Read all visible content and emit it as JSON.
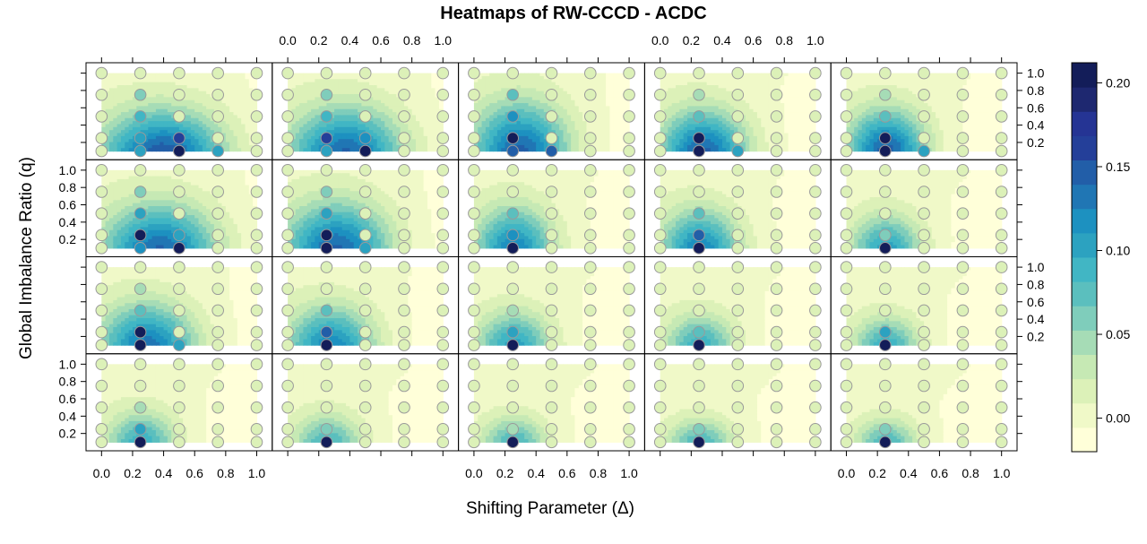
{
  "chart_data": {
    "type": "heatmap",
    "title": "Heatmaps of RW-CCCD - ACDC",
    "xlabel": "Shifting Parameter  (Δ)",
    "ylabel": "Global Imbalance Ratio (q)",
    "x_ticks": [
      "0.0",
      "0.2",
      "0.4",
      "0.6",
      "0.8",
      "1.0"
    ],
    "y_ticks": [
      "0.2",
      "0.4",
      "0.6",
      "0.8",
      "1.0"
    ],
    "x_points": [
      0.0,
      0.25,
      0.5,
      0.75,
      1.0
    ],
    "y_points": [
      0.1,
      0.25,
      0.5,
      0.75,
      1.0
    ],
    "xlim": [
      -0.1,
      1.1
    ],
    "ylim": [
      0.0,
      1.12
    ],
    "panel_rows": 4,
    "panel_cols": 5,
    "colorbar": {
      "ticks": [
        "0.00",
        "0.05",
        "0.10",
        "0.15",
        "0.20"
      ],
      "tick_values": [
        0.0,
        0.05,
        0.1,
        0.15,
        0.2
      ],
      "range": [
        -0.02,
        0.212
      ],
      "colors": [
        "#ffffd9",
        "#f0f9c8",
        "#dcf1b8",
        "#c6e9b4",
        "#a6dcb6",
        "#7fcdbb",
        "#5bbfbe",
        "#41b6c4",
        "#2ca2c0",
        "#1d91c0",
        "#2076b4",
        "#225ea8",
        "#243f99",
        "#253494",
        "#1e2870",
        "#131d59"
      ]
    },
    "panels": [
      {
        "row": 0,
        "col": 0,
        "hot": {
          "x": 0.4,
          "y": 0.02,
          "sx": 0.28,
          "sy": 0.38,
          "amp": 0.16
        },
        "points": [
          {
            "x": 0.25,
            "y": 0.1,
            "v": 0.1
          },
          {
            "x": 0.5,
            "y": 0.1,
            "v": 0.21
          },
          {
            "x": 0.75,
            "y": 0.1,
            "v": 0.1
          },
          {
            "x": 0.25,
            "y": 0.25,
            "v": 0.1
          },
          {
            "x": 0.5,
            "y": 0.25,
            "v": 0.16
          },
          {
            "x": 0.25,
            "y": 0.5,
            "v": 0.09
          },
          {
            "x": 0.25,
            "y": 0.75,
            "v": 0.06
          }
        ]
      },
      {
        "row": 0,
        "col": 1,
        "hot": {
          "x": 0.38,
          "y": 0.02,
          "sx": 0.26,
          "sy": 0.4,
          "amp": 0.15
        },
        "points": [
          {
            "x": 0.25,
            "y": 0.1,
            "v": 0.1
          },
          {
            "x": 0.5,
            "y": 0.1,
            "v": 0.21
          },
          {
            "x": 0.25,
            "y": 0.25,
            "v": 0.16
          },
          {
            "x": 0.5,
            "y": 0.25,
            "v": 0.12
          },
          {
            "x": 0.25,
            "y": 0.5,
            "v": 0.09
          },
          {
            "x": 0.25,
            "y": 0.75,
            "v": 0.06
          }
        ]
      },
      {
        "row": 0,
        "col": 2,
        "hot": {
          "x": 0.3,
          "y": 0.05,
          "sx": 0.22,
          "sy": 0.42,
          "amp": 0.15
        },
        "points": [
          {
            "x": 0.25,
            "y": 0.1,
            "v": 0.15
          },
          {
            "x": 0.5,
            "y": 0.1,
            "v": 0.14
          },
          {
            "x": 0.25,
            "y": 0.25,
            "v": 0.21
          },
          {
            "x": 0.25,
            "y": 0.5,
            "v": 0.12
          },
          {
            "x": 0.25,
            "y": 0.75,
            "v": 0.07
          }
        ]
      },
      {
        "row": 0,
        "col": 3,
        "hot": {
          "x": 0.28,
          "y": 0.05,
          "sx": 0.2,
          "sy": 0.36,
          "amp": 0.15
        },
        "points": [
          {
            "x": 0.25,
            "y": 0.1,
            "v": 0.21
          },
          {
            "x": 0.5,
            "y": 0.1,
            "v": 0.1
          },
          {
            "x": 0.25,
            "y": 0.25,
            "v": 0.21
          },
          {
            "x": 0.25,
            "y": 0.5,
            "v": 0.08
          },
          {
            "x": 0.25,
            "y": 0.75,
            "v": 0.05
          }
        ]
      },
      {
        "row": 0,
        "col": 4,
        "hot": {
          "x": 0.26,
          "y": 0.08,
          "sx": 0.18,
          "sy": 0.34,
          "amp": 0.15
        },
        "points": [
          {
            "x": 0.25,
            "y": 0.1,
            "v": 0.21
          },
          {
            "x": 0.5,
            "y": 0.1,
            "v": 0.1
          },
          {
            "x": 0.25,
            "y": 0.25,
            "v": 0.21
          },
          {
            "x": 0.25,
            "y": 0.5,
            "v": 0.08
          },
          {
            "x": 0.25,
            "y": 0.75,
            "v": 0.05
          }
        ]
      },
      {
        "row": 1,
        "col": 0,
        "hot": {
          "x": 0.38,
          "y": 0.02,
          "sx": 0.26,
          "sy": 0.4,
          "amp": 0.15
        },
        "points": [
          {
            "x": 0.25,
            "y": 0.1,
            "v": 0.12
          },
          {
            "x": 0.5,
            "y": 0.1,
            "v": 0.21
          },
          {
            "x": 0.25,
            "y": 0.25,
            "v": 0.21
          },
          {
            "x": 0.5,
            "y": 0.25,
            "v": 0.1
          },
          {
            "x": 0.25,
            "y": 0.5,
            "v": 0.1
          },
          {
            "x": 0.25,
            "y": 0.75,
            "v": 0.06
          }
        ]
      },
      {
        "row": 1,
        "col": 1,
        "hot": {
          "x": 0.32,
          "y": 0.04,
          "sx": 0.24,
          "sy": 0.4,
          "amp": 0.15
        },
        "points": [
          {
            "x": 0.25,
            "y": 0.1,
            "v": 0.21
          },
          {
            "x": 0.5,
            "y": 0.1,
            "v": 0.1
          },
          {
            "x": 0.25,
            "y": 0.25,
            "v": 0.21
          },
          {
            "x": 0.25,
            "y": 0.5,
            "v": 0.1
          },
          {
            "x": 0.25,
            "y": 0.75,
            "v": 0.06
          }
        ]
      },
      {
        "row": 1,
        "col": 2,
        "hot": {
          "x": 0.26,
          "y": 0.05,
          "sx": 0.18,
          "sy": 0.36,
          "amp": 0.13
        },
        "points": [
          {
            "x": 0.25,
            "y": 0.1,
            "v": 0.21
          },
          {
            "x": 0.25,
            "y": 0.25,
            "v": 0.12
          },
          {
            "x": 0.25,
            "y": 0.5,
            "v": 0.07
          }
        ]
      },
      {
        "row": 1,
        "col": 3,
        "hot": {
          "x": 0.26,
          "y": 0.05,
          "sx": 0.18,
          "sy": 0.34,
          "amp": 0.13
        },
        "points": [
          {
            "x": 0.25,
            "y": 0.1,
            "v": 0.21
          },
          {
            "x": 0.25,
            "y": 0.25,
            "v": 0.14
          },
          {
            "x": 0.25,
            "y": 0.5,
            "v": 0.07
          }
        ]
      },
      {
        "row": 1,
        "col": 4,
        "hot": {
          "x": 0.26,
          "y": 0.05,
          "sx": 0.16,
          "sy": 0.3,
          "amp": 0.11
        },
        "points": [
          {
            "x": 0.25,
            "y": 0.1,
            "v": 0.21
          },
          {
            "x": 0.25,
            "y": 0.25,
            "v": 0.06
          }
        ]
      },
      {
        "row": 2,
        "col": 0,
        "hot": {
          "x": 0.3,
          "y": 0.05,
          "sx": 0.22,
          "sy": 0.36,
          "amp": 0.14
        },
        "points": [
          {
            "x": 0.25,
            "y": 0.1,
            "v": 0.21
          },
          {
            "x": 0.5,
            "y": 0.1,
            "v": 0.1
          },
          {
            "x": 0.25,
            "y": 0.25,
            "v": 0.21
          },
          {
            "x": 0.25,
            "y": 0.5,
            "v": 0.08
          },
          {
            "x": 0.25,
            "y": 0.75,
            "v": 0.05
          }
        ]
      },
      {
        "row": 2,
        "col": 1,
        "hot": {
          "x": 0.28,
          "y": 0.05,
          "sx": 0.2,
          "sy": 0.34,
          "amp": 0.13
        },
        "points": [
          {
            "x": 0.25,
            "y": 0.1,
            "v": 0.21
          },
          {
            "x": 0.25,
            "y": 0.25,
            "v": 0.14
          },
          {
            "x": 0.25,
            "y": 0.5,
            "v": 0.07
          }
        ]
      },
      {
        "row": 2,
        "col": 2,
        "hot": {
          "x": 0.26,
          "y": 0.05,
          "sx": 0.17,
          "sy": 0.3,
          "amp": 0.11
        },
        "points": [
          {
            "x": 0.25,
            "y": 0.1,
            "v": 0.21
          },
          {
            "x": 0.25,
            "y": 0.25,
            "v": 0.1
          },
          {
            "x": 0.25,
            "y": 0.5,
            "v": 0.05
          }
        ]
      },
      {
        "row": 2,
        "col": 3,
        "hot": {
          "x": 0.26,
          "y": 0.05,
          "sx": 0.16,
          "sy": 0.28,
          "amp": 0.1
        },
        "points": [
          {
            "x": 0.25,
            "y": 0.1,
            "v": 0.21
          },
          {
            "x": 0.25,
            "y": 0.25,
            "v": 0.07
          }
        ]
      },
      {
        "row": 2,
        "col": 4,
        "hot": {
          "x": 0.26,
          "y": 0.05,
          "sx": 0.15,
          "sy": 0.26,
          "amp": 0.1
        },
        "points": [
          {
            "x": 0.25,
            "y": 0.1,
            "v": 0.21
          },
          {
            "x": 0.25,
            "y": 0.25,
            "v": 0.1
          }
        ]
      },
      {
        "row": 3,
        "col": 0,
        "hot": {
          "x": 0.26,
          "y": 0.05,
          "sx": 0.16,
          "sy": 0.28,
          "amp": 0.1
        },
        "points": [
          {
            "x": 0.25,
            "y": 0.1,
            "v": 0.21
          },
          {
            "x": 0.25,
            "y": 0.25,
            "v": 0.1
          },
          {
            "x": 0.25,
            "y": 0.5,
            "v": 0.05
          }
        ]
      },
      {
        "row": 3,
        "col": 1,
        "hot": {
          "x": 0.26,
          "y": 0.05,
          "sx": 0.16,
          "sy": 0.26,
          "amp": 0.09
        },
        "points": [
          {
            "x": 0.25,
            "y": 0.1,
            "v": 0.21
          },
          {
            "x": 0.25,
            "y": 0.25,
            "v": 0.06
          }
        ]
      },
      {
        "row": 3,
        "col": 2,
        "hot": {
          "x": 0.26,
          "y": 0.05,
          "sx": 0.15,
          "sy": 0.24,
          "amp": 0.09
        },
        "points": [
          {
            "x": 0.25,
            "y": 0.1,
            "v": 0.21
          },
          {
            "x": 0.25,
            "y": 0.25,
            "v": 0.05
          }
        ]
      },
      {
        "row": 3,
        "col": 3,
        "hot": {
          "x": 0.26,
          "y": 0.05,
          "sx": 0.15,
          "sy": 0.22,
          "amp": 0.09
        },
        "points": [
          {
            "x": 0.25,
            "y": 0.1,
            "v": 0.21
          },
          {
            "x": 0.25,
            "y": 0.25,
            "v": 0.06
          }
        ]
      },
      {
        "row": 3,
        "col": 4,
        "hot": {
          "x": 0.26,
          "y": 0.05,
          "sx": 0.14,
          "sy": 0.22,
          "amp": 0.09
        },
        "points": [
          {
            "x": 0.25,
            "y": 0.1,
            "v": 0.21
          },
          {
            "x": 0.25,
            "y": 0.25,
            "v": 0.06
          }
        ]
      }
    ]
  }
}
